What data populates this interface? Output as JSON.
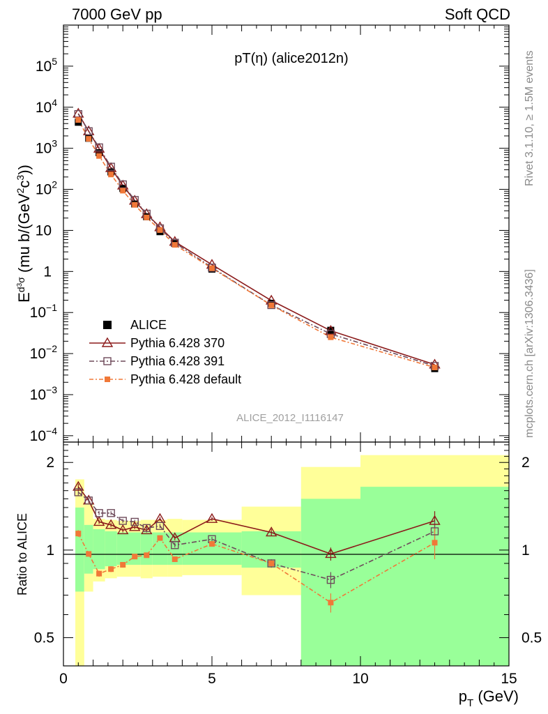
{
  "header": {
    "left": "7000 GeV pp",
    "right": "Soft QCD"
  },
  "side_labels": {
    "rivet": "Rivet 3.1.10, ≥ 1.5M events",
    "mcplots": "mcplots.cern.ch [arXiv:1306.3436]"
  },
  "colors": {
    "data": "#000000",
    "p370": "#8b1a1a",
    "p391": "#6e4a5a",
    "pdef": "#f07838",
    "band_inner": "#99ff99",
    "band_outer": "#ffff99"
  },
  "chart_data": [
    {
      "type": "scatter",
      "panel": "main",
      "title": "pT(η) (alice2012n)",
      "ylabel": "E d³σ/dp³ (mu b/(GeV²c³))",
      "watermark": "ALICE_2012_I1116147",
      "yscale": "log",
      "xlim": [
        0,
        15
      ],
      "ylim": [
        7e-05,
        1000000
      ],
      "yticks": [
        {
          "v": 100000,
          "base": "10",
          "exp": "5"
        },
        {
          "v": 10000,
          "base": "10",
          "exp": "4"
        },
        {
          "v": 1000,
          "base": "10",
          "exp": "3"
        },
        {
          "v": 100,
          "base": "10",
          "exp": "2"
        },
        {
          "v": 10,
          "base": "10",
          "exp": ""
        },
        {
          "v": 1,
          "base": "1",
          "exp": ""
        },
        {
          "v": 0.1,
          "base": "10",
          "exp": "−1"
        },
        {
          "v": 0.01,
          "base": "10",
          "exp": "−2"
        },
        {
          "v": 0.001,
          "base": "10",
          "exp": "−3"
        },
        {
          "v": 0.0001,
          "base": "10",
          "exp": "−4"
        }
      ],
      "legend": {
        "placement": "bottom-left",
        "entries": [
          {
            "label": "ALICE",
            "key": "data"
          },
          {
            "label": "Pythia 6.428 370",
            "key": "p370"
          },
          {
            "label": "Pythia 6.428 391",
            "key": "p391"
          },
          {
            "label": "Pythia 6.428 default",
            "key": "pdef"
          }
        ]
      },
      "x": [
        0.5,
        0.85,
        1.2,
        1.6,
        2.0,
        2.4,
        2.8,
        3.25,
        3.75,
        5.0,
        7.0,
        9.0,
        12.5
      ],
      "data": [
        4300,
        1750,
        780,
        265,
        105,
        44,
        21.5,
        9.3,
        4.8,
        1.14,
        0.168,
        0.037,
        0.0043
      ],
      "p370": [
        7000,
        2600,
        980,
        330,
        124,
        53,
        25,
        12.0,
        5.3,
        1.46,
        0.196,
        0.036,
        0.0054
      ],
      "p391": [
        6800,
        2600,
        1050,
        355,
        132,
        55,
        25.5,
        11.2,
        5.0,
        1.24,
        0.152,
        0.03,
        0.005
      ],
      "pdef": [
        4900,
        1700,
        650,
        230,
        93,
        42,
        20.7,
        10.2,
        4.45,
        1.2,
        0.15,
        0.025,
        0.0046
      ]
    },
    {
      "type": "scatter",
      "panel": "ratio",
      "ylabel": "Ratio to ALICE",
      "xlabel": "p_T (GeV)",
      "yscale": "log",
      "xlim": [
        0,
        15
      ],
      "ylim": [
        0.4,
        2.35
      ],
      "yticks": [
        0.5,
        1,
        2
      ],
      "xticks": [
        0,
        5,
        10,
        15
      ],
      "x": [
        0.5,
        0.85,
        1.2,
        1.6,
        2.0,
        2.4,
        2.8,
        3.25,
        3.75,
        5.0,
        7.0,
        9.0,
        12.5
      ],
      "p370": [
        1.65,
        1.48,
        1.25,
        1.22,
        1.17,
        1.2,
        1.17,
        1.28,
        1.1,
        1.28,
        1.15,
        0.97,
        1.26
      ],
      "p370_err": [
        0.04,
        0.03,
        0.02,
        0.02,
        0.02,
        0.02,
        0.02,
        0.02,
        0.02,
        0.02,
        0.03,
        0.05,
        0.1
      ],
      "p391": [
        1.58,
        1.48,
        1.34,
        1.34,
        1.26,
        1.25,
        1.19,
        1.21,
        1.04,
        1.09,
        0.9,
        0.79,
        1.16
      ],
      "p391_err": [
        0.04,
        0.03,
        0.02,
        0.02,
        0.02,
        0.02,
        0.02,
        0.02,
        0.02,
        0.02,
        0.03,
        0.05,
        0.1
      ],
      "pdef": [
        1.14,
        0.97,
        0.83,
        0.86,
        0.89,
        0.95,
        0.96,
        1.1,
        0.93,
        1.05,
        0.9,
        0.66,
        1.06
      ],
      "pdef_err": [
        0.03,
        0.02,
        0.02,
        0.02,
        0.02,
        0.02,
        0.02,
        0.02,
        0.02,
        0.02,
        0.03,
        0.05,
        0.13
      ],
      "bands": [
        {
          "x0": 0.4,
          "x1": 0.7,
          "in_lo": 0.72,
          "in_hi": 1.4,
          "out_lo": 0.3,
          "out_hi": 1.75
        },
        {
          "x0": 0.7,
          "x1": 1.0,
          "in_lo": 0.83,
          "in_hi": 1.22,
          "out_lo": 0.72,
          "out_hi": 1.45
        },
        {
          "x0": 1.0,
          "x1": 1.4,
          "in_lo": 0.86,
          "in_hi": 1.18,
          "out_lo": 0.78,
          "out_hi": 1.28
        },
        {
          "x0": 1.4,
          "x1": 1.8,
          "in_lo": 0.88,
          "in_hi": 1.16,
          "out_lo": 0.8,
          "out_hi": 1.27
        },
        {
          "x0": 1.8,
          "x1": 2.6,
          "in_lo": 0.89,
          "in_hi": 1.15,
          "out_lo": 0.81,
          "out_hi": 1.26
        },
        {
          "x0": 2.6,
          "x1": 3.0,
          "in_lo": 0.89,
          "in_hi": 1.15,
          "out_lo": 0.8,
          "out_hi": 1.27
        },
        {
          "x0": 3.0,
          "x1": 3.5,
          "in_lo": 0.89,
          "in_hi": 1.15,
          "out_lo": 0.81,
          "out_hi": 1.27
        },
        {
          "x0": 3.5,
          "x1": 4.0,
          "in_lo": 0.89,
          "in_hi": 1.15,
          "out_lo": 0.81,
          "out_hi": 1.28
        },
        {
          "x0": 4.0,
          "x1": 6.0,
          "in_lo": 0.89,
          "in_hi": 1.15,
          "out_lo": 0.82,
          "out_hi": 1.27
        },
        {
          "x0": 6.0,
          "x1": 8.0,
          "in_lo": 0.87,
          "in_hi": 1.16,
          "out_lo": 0.7,
          "out_hi": 1.41
        },
        {
          "x0": 8.0,
          "x1": 10.0,
          "in_lo": 0.3,
          "in_hi": 1.5,
          "out_lo": 0.3,
          "out_hi": 1.93
        },
        {
          "x0": 10.0,
          "x1": 15.0,
          "in_lo": 0.36,
          "in_hi": 1.65,
          "out_lo": 0.36,
          "out_hi": 2.12
        }
      ]
    }
  ]
}
